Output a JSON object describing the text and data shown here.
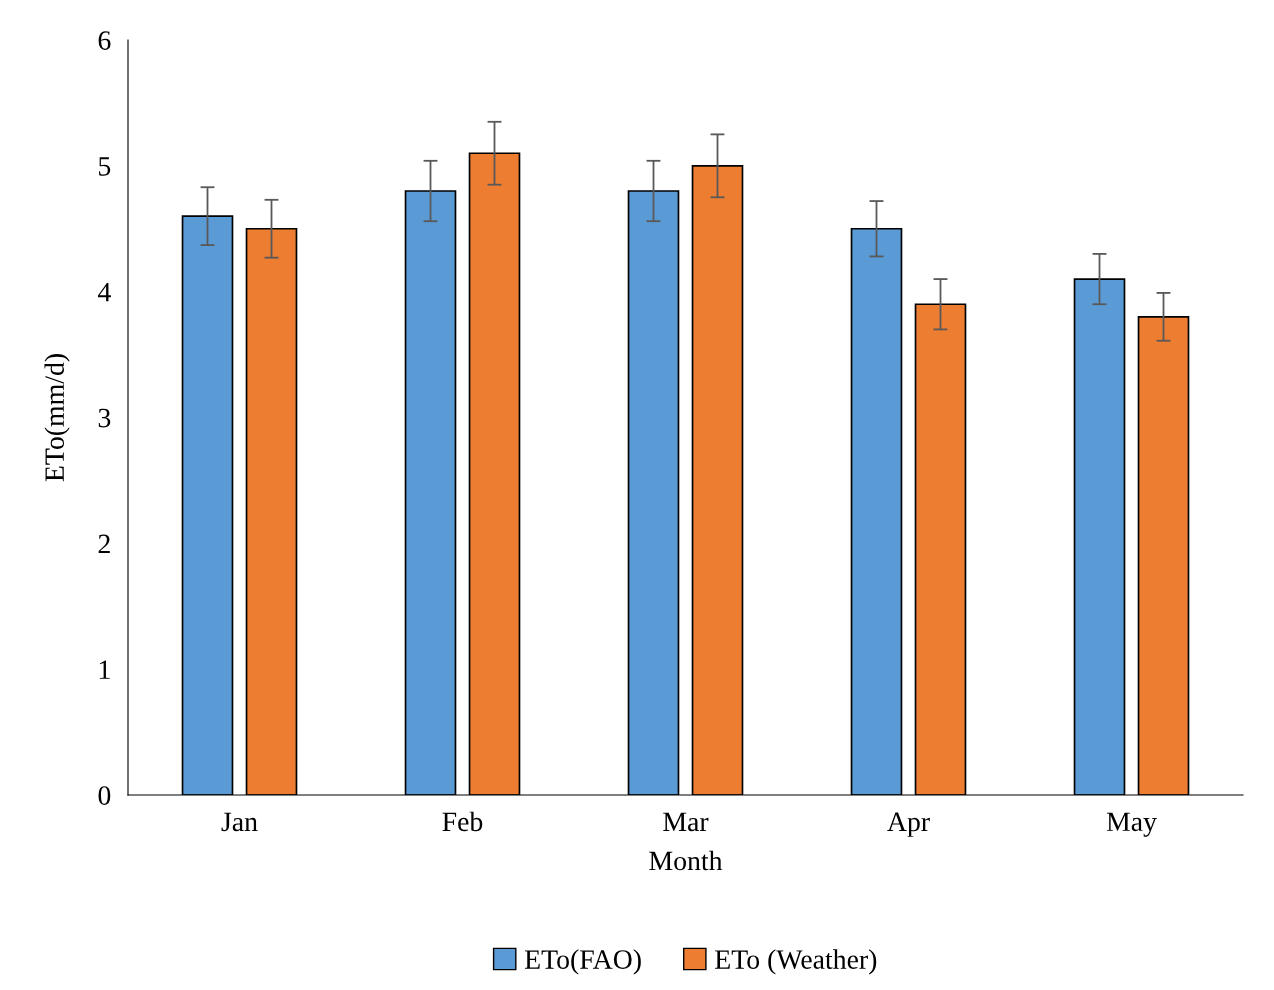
{
  "chart_data": {
    "type": "bar",
    "xlabel": "Month",
    "ylabel": "ETo(mm/d)",
    "categories": [
      "Jan",
      "Feb",
      "Mar",
      "Apr",
      "May"
    ],
    "series": [
      {
        "name": "ETo(FAO)",
        "color": "#5b9bd5",
        "values": [
          4.6,
          4.8,
          4.8,
          4.5,
          4.1
        ],
        "errors": [
          0.23,
          0.24,
          0.24,
          0.22,
          0.2
        ]
      },
      {
        "name": "ETo (Weather)",
        "color": "#ed7d31",
        "values": [
          4.5,
          5.1,
          5.0,
          3.9,
          3.8
        ],
        "errors": [
          0.23,
          0.25,
          0.25,
          0.2,
          0.19
        ]
      }
    ],
    "ylim": [
      0,
      6
    ],
    "yticks": [
      0,
      1,
      2,
      3,
      4,
      5,
      6
    ],
    "grid": false,
    "legend": "bottom"
  }
}
